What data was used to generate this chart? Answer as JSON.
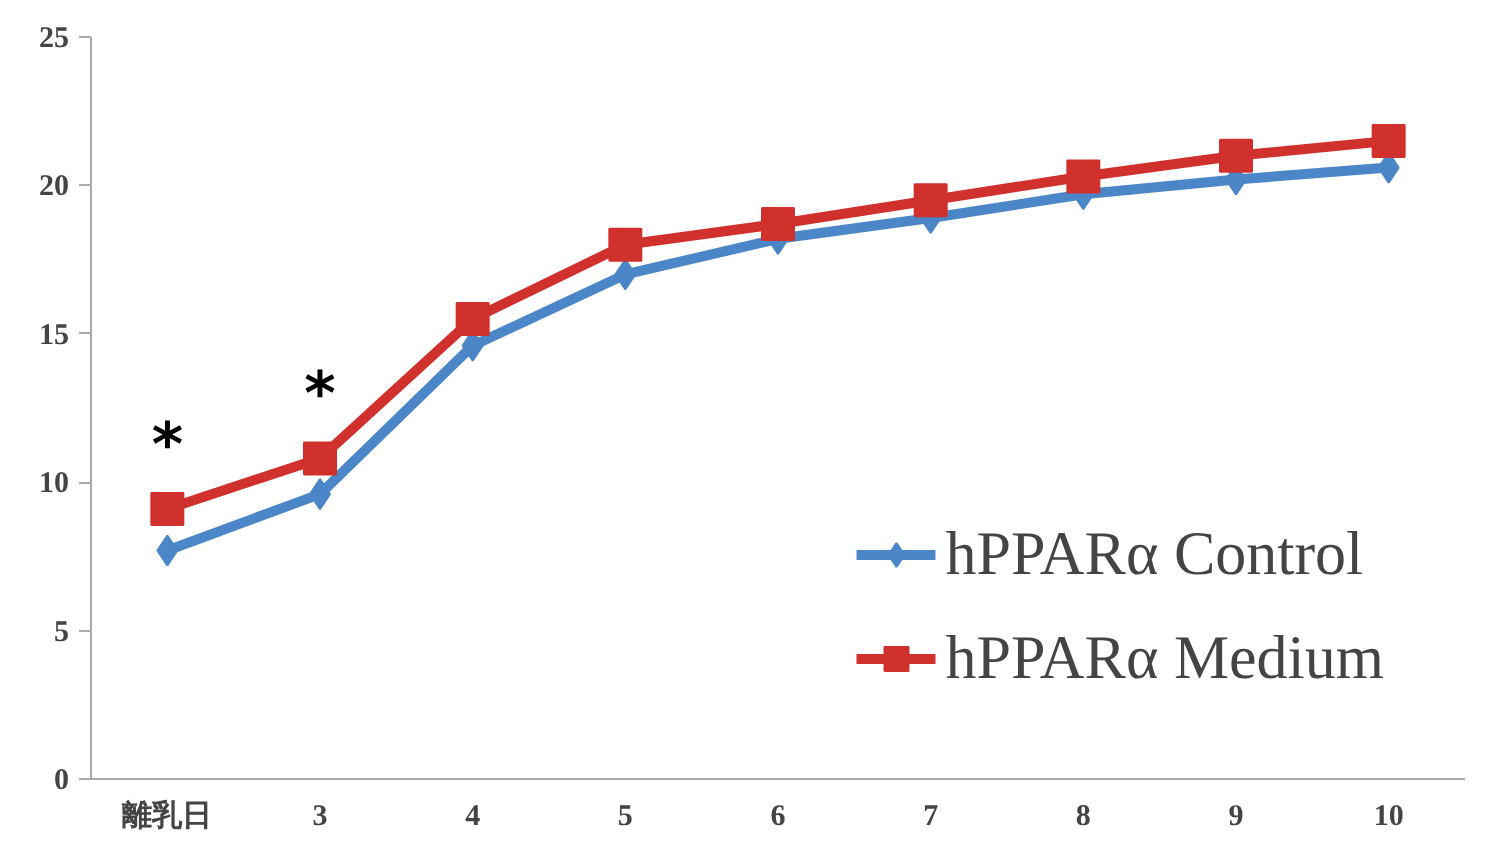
{
  "chart_data": {
    "type": "line",
    "categories": [
      "離乳日",
      "3",
      "4",
      "5",
      "6",
      "7",
      "8",
      "9",
      "10"
    ],
    "series": [
      {
        "name": "hPPARα Control",
        "color": "#4a86c8",
        "marker": "diamond",
        "values": [
          7.7,
          9.6,
          14.6,
          17.0,
          18.2,
          18.9,
          19.7,
          20.2,
          20.6
        ]
      },
      {
        "name": "hPPARα Medium",
        "color": "#d0312d",
        "marker": "square",
        "values": [
          9.1,
          10.8,
          15.5,
          18.0,
          18.7,
          19.5,
          20.3,
          21.0,
          21.5
        ]
      }
    ],
    "ylim": [
      0,
      25
    ],
    "yticks": [
      0,
      5,
      10,
      15,
      20,
      25
    ],
    "grid": false,
    "legend": "bottom right",
    "line_style": "solid",
    "annotations": [
      "*",
      "*"
    ]
  }
}
